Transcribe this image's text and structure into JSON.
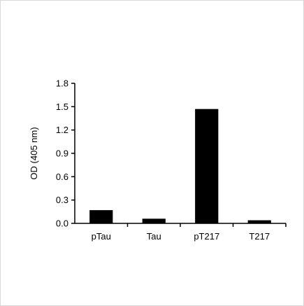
{
  "chart_data": {
    "type": "bar",
    "title": "",
    "xlabel": "",
    "ylabel": "OD (405 nm)",
    "categories": [
      "pTau",
      "Tau",
      "pT217",
      "T217"
    ],
    "values": [
      0.17,
      0.06,
      1.47,
      0.04
    ],
    "ylim": [
      0,
      1.8
    ],
    "yticks": [
      "0.0",
      "0.3",
      "0.6",
      "0.9",
      "1.2",
      "1.5",
      "1.8"
    ],
    "grid": false,
    "legend": "none",
    "bar_color": "#000000",
    "axis_color": "#000000"
  }
}
